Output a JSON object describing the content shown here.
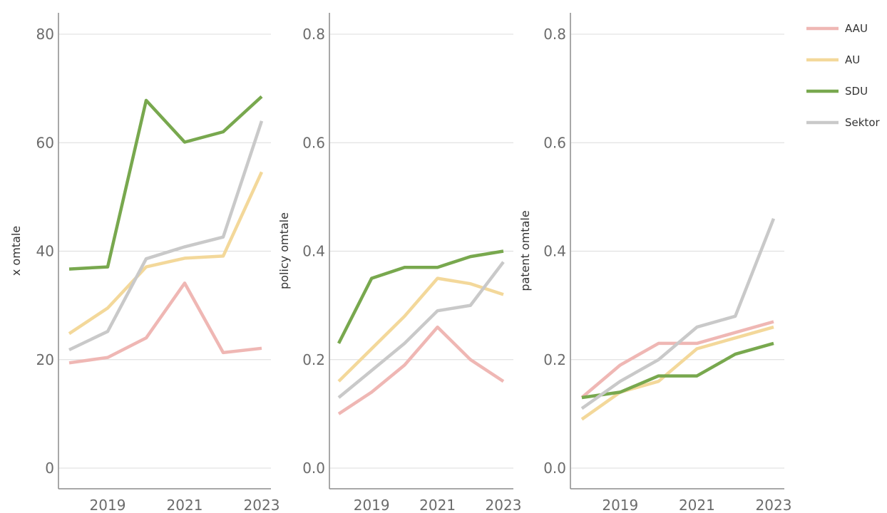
{
  "chart_data": {
    "type": "line",
    "legend": {
      "position": "right",
      "entries": [
        {
          "name": "AAU",
          "color": "#efb7b4"
        },
        {
          "name": "AU",
          "color": "#f3d89a"
        },
        {
          "name": "SDU",
          "color": "#78a84e"
        },
        {
          "name": "Sektor",
          "color": "#c9c9c9"
        }
      ]
    },
    "panels": [
      {
        "ylabel": "x omtale",
        "ylim": [
          -4,
          84
        ],
        "yticks": [
          0,
          20,
          40,
          60,
          80
        ],
        "ytick_labels": [
          "0",
          "20",
          "40",
          "60",
          "80"
        ],
        "xlim": [
          2017.6,
          2023.4
        ],
        "xticks": [
          2019,
          2021,
          2023
        ],
        "xtick_labels": [
          "2019",
          "2021",
          "2023"
        ],
        "grid": true,
        "x": [
          2018,
          2019,
          2020,
          2021,
          2022,
          2023
        ],
        "series": [
          {
            "name": "AAU",
            "values": [
              19.4,
              20.4,
              24.0,
              34.1,
              21.3,
              22.1
            ]
          },
          {
            "name": "AU",
            "values": [
              24.8,
              29.5,
              37.1,
              38.7,
              39.1,
              54.6
            ]
          },
          {
            "name": "SDU",
            "values": [
              36.7,
              37.1,
              67.8,
              60.1,
              62.0,
              68.5
            ]
          },
          {
            "name": "Sektor",
            "values": [
              21.8,
              25.2,
              38.6,
              40.8,
              42.6,
              64.0
            ]
          }
        ]
      },
      {
        "ylabel": "policy omtale",
        "ylim": [
          -0.04,
          0.84
        ],
        "yticks": [
          0,
          0.2,
          0.4,
          0.6,
          0.8
        ],
        "ytick_labels": [
          "0.0",
          "0.2",
          "0.4",
          "0.6",
          "0.8"
        ],
        "xlim": [
          2017.6,
          2023.4
        ],
        "xticks": [
          2019,
          2021,
          2023
        ],
        "xtick_labels": [
          "2019",
          "2021",
          "2023"
        ],
        "grid": true,
        "x": [
          2018,
          2019,
          2020,
          2021,
          2022,
          2023
        ],
        "series": [
          {
            "name": "AAU",
            "values": [
              0.1,
              0.14,
              0.19,
              0.26,
              0.2,
              0.16
            ]
          },
          {
            "name": "AU",
            "values": [
              0.16,
              0.22,
              0.28,
              0.35,
              0.34,
              0.32
            ]
          },
          {
            "name": "SDU",
            "values": [
              0.23,
              0.35,
              0.37,
              0.37,
              0.39,
              0.4
            ]
          },
          {
            "name": "Sektor",
            "values": [
              0.13,
              0.18,
              0.23,
              0.29,
              0.3,
              0.38
            ]
          }
        ]
      },
      {
        "ylabel": "patent omtale",
        "ylim": [
          -0.04,
          0.84
        ],
        "yticks": [
          0,
          0.2,
          0.4,
          0.6,
          0.8
        ],
        "ytick_labels": [
          "0.0",
          "0.2",
          "0.4",
          "0.6",
          "0.8"
        ],
        "xlim": [
          2017.6,
          2023.4
        ],
        "xticks": [
          2019,
          2021,
          2023
        ],
        "xtick_labels": [
          "2019",
          "2021",
          "2023"
        ],
        "grid": true,
        "x": [
          2018,
          2019,
          2020,
          2021,
          2022,
          2023
        ],
        "series": [
          {
            "name": "AAU",
            "values": [
              0.13,
              0.19,
              0.23,
              0.23,
              0.25,
              0.27
            ]
          },
          {
            "name": "AU",
            "values": [
              0.09,
              0.14,
              0.16,
              0.22,
              0.24,
              0.26
            ]
          },
          {
            "name": "SDU",
            "values": [
              0.13,
              0.14,
              0.17,
              0.17,
              0.21,
              0.23
            ]
          },
          {
            "name": "Sektor",
            "values": [
              0.11,
              0.16,
              0.2,
              0.26,
              0.28,
              0.46
            ]
          }
        ]
      }
    ]
  }
}
